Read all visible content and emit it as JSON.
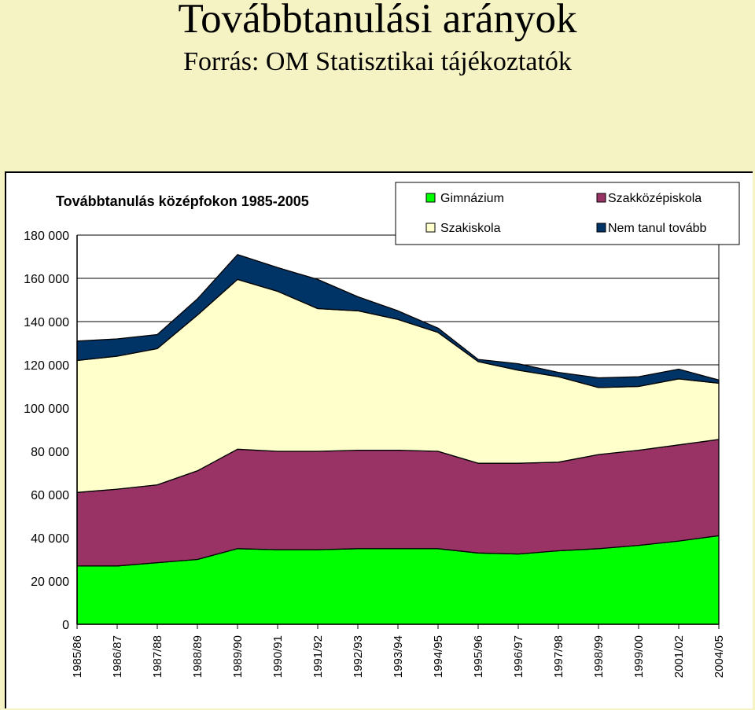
{
  "slide": {
    "title": "Továbbtanulási arányok",
    "subtitle": "Forrás: OM Statisztikai tájékoztatók"
  },
  "chart_data": {
    "type": "area",
    "stacked": true,
    "title": "Továbbtanulás középfokon 1985-2005",
    "xlabel": "",
    "ylabel": "",
    "ylim": [
      0,
      180000
    ],
    "yticks": [
      0,
      20000,
      40000,
      60000,
      80000,
      100000,
      120000,
      140000,
      160000,
      180000
    ],
    "ytick_labels": [
      "0",
      "20 000",
      "40 000",
      "60 000",
      "80 000",
      "100 000",
      "120 000",
      "140 000",
      "160 000",
      "180 000"
    ],
    "grid": "horizontal",
    "legend_position": "top-right",
    "categories": [
      "1985/86",
      "1986/87",
      "1987/88",
      "1988/89",
      "1989/90",
      "1990/91",
      "1991/92",
      "1992/93",
      "1993/94",
      "1994/95",
      "1995/96",
      "1996/97",
      "1997/98",
      "1998/99",
      "1999/00",
      "2001/02",
      "2004/05"
    ],
    "series": [
      {
        "name": "Gimnázium",
        "color": "#00ff00",
        "values": [
          27000,
          27000,
          28500,
          30000,
          35000,
          34500,
          34500,
          35000,
          35000,
          35000,
          33000,
          32500,
          34000,
          35000,
          36500,
          38500,
          41000
        ]
      },
      {
        "name": "Szakközépiskola",
        "color": "#993366",
        "values": [
          34000,
          35500,
          36000,
          41000,
          46000,
          45500,
          45500,
          45500,
          45500,
          45000,
          41500,
          42000,
          41000,
          43500,
          44000,
          44500,
          44500
        ]
      },
      {
        "name": "Szakiskola",
        "color": "#ffffcc",
        "values": [
          61000,
          61500,
          63000,
          72000,
          78500,
          74000,
          66000,
          64500,
          60500,
          55000,
          47000,
          43000,
          39500,
          31000,
          29500,
          30500,
          26000
        ]
      },
      {
        "name": "Nem tanul tovább",
        "color": "#003366",
        "values": [
          9000,
          8000,
          6500,
          7500,
          11500,
          11000,
          13500,
          6500,
          4000,
          2000,
          1000,
          3000,
          2000,
          4500,
          4500,
          4500,
          1500
        ]
      }
    ]
  }
}
